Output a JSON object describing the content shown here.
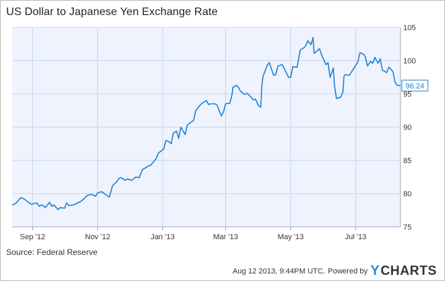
{
  "page": {
    "title": "US Dollar to Japanese Yen Exchange Rate",
    "source": "Source: Federal Reserve",
    "timestamp": "Aug 12 2013, 9:44PM UTC.",
    "powered_by": "Powered by",
    "brand_mark": "Y",
    "brand_rest": "CHARTS"
  },
  "colors": {
    "line": "#1f7fd0",
    "plot_bg": "#eef3fd",
    "grid": "#c6d6ef",
    "last_value_border": "#1f7fd0",
    "brand_accent": "#2a8dd4"
  },
  "chart_data": {
    "type": "line",
    "title": "US Dollar to Japanese Yen Exchange Rate",
    "x_tick_labels": [
      "Sep '12",
      "Nov '12",
      "Jan '13",
      "Mar '13",
      "May '13",
      "Jul '13"
    ],
    "y_ticks": [
      75,
      80,
      85,
      90,
      95,
      100,
      105
    ],
    "ylim": [
      75,
      105
    ],
    "x_start": "2012-08-13",
    "x_end": "2013-08-12",
    "grid": true,
    "last_value_label": "96.24",
    "series": [
      {
        "values": [
          [
            "2012-08-13",
            78.3
          ],
          [
            "2012-08-16",
            78.5
          ],
          [
            "2012-08-21",
            79.4
          ],
          [
            "2012-08-24",
            79.2
          ],
          [
            "2012-08-28",
            78.7
          ],
          [
            "2012-08-31",
            78.4
          ],
          [
            "2012-09-05",
            78.6
          ],
          [
            "2012-09-07",
            78.1
          ],
          [
            "2012-09-10",
            78.3
          ],
          [
            "2012-09-13",
            77.9
          ],
          [
            "2012-09-17",
            78.7
          ],
          [
            "2012-09-19",
            78.1
          ],
          [
            "2012-09-21",
            78.3
          ],
          [
            "2012-09-25",
            77.6
          ],
          [
            "2012-09-27",
            77.9
          ],
          [
            "2012-10-01",
            77.8
          ],
          [
            "2012-10-03",
            78.6
          ],
          [
            "2012-10-05",
            78.2
          ],
          [
            "2012-10-09",
            78.3
          ],
          [
            "2012-10-12",
            78.5
          ],
          [
            "2012-10-16",
            78.8
          ],
          [
            "2012-10-19",
            79.2
          ],
          [
            "2012-10-22",
            79.7
          ],
          [
            "2012-10-24",
            79.8
          ],
          [
            "2012-10-26",
            79.9
          ],
          [
            "2012-10-30",
            79.6
          ],
          [
            "2012-11-01",
            80.1
          ],
          [
            "2012-11-05",
            80.3
          ],
          [
            "2012-11-08",
            79.9
          ],
          [
            "2012-11-12",
            79.5
          ],
          [
            "2012-11-15",
            81.2
          ],
          [
            "2012-11-19",
            81.8
          ],
          [
            "2012-11-21",
            82.3
          ],
          [
            "2012-11-23",
            82.4
          ],
          [
            "2012-11-27",
            82.0
          ],
          [
            "2012-11-29",
            82.2
          ],
          [
            "2012-12-03",
            82.0
          ],
          [
            "2012-12-05",
            82.3
          ],
          [
            "2012-12-07",
            82.5
          ],
          [
            "2012-12-10",
            82.4
          ],
          [
            "2012-12-13",
            83.6
          ],
          [
            "2012-12-17",
            84.0
          ],
          [
            "2012-12-19",
            84.2
          ],
          [
            "2012-12-21",
            84.3
          ],
          [
            "2012-12-26",
            85.3
          ],
          [
            "2012-12-28",
            86.1
          ],
          [
            "2013-01-02",
            86.7
          ],
          [
            "2013-01-04",
            88.0
          ],
          [
            "2013-01-07",
            87.8
          ],
          [
            "2013-01-09",
            87.5
          ],
          [
            "2013-01-11",
            89.1
          ],
          [
            "2013-01-14",
            89.4
          ],
          [
            "2013-01-16",
            88.3
          ],
          [
            "2013-01-18",
            90.0
          ],
          [
            "2013-01-22",
            88.9
          ],
          [
            "2013-01-24",
            90.3
          ],
          [
            "2013-01-28",
            90.8
          ],
          [
            "2013-01-30",
            91.0
          ],
          [
            "2013-02-01",
            92.5
          ],
          [
            "2013-02-05",
            93.3
          ],
          [
            "2013-02-07",
            93.6
          ],
          [
            "2013-02-11",
            94.0
          ],
          [
            "2013-02-13",
            93.4
          ],
          [
            "2013-02-15",
            93.5
          ],
          [
            "2013-02-19",
            93.5
          ],
          [
            "2013-02-21",
            93.3
          ],
          [
            "2013-02-25",
            91.7
          ],
          [
            "2013-02-27",
            92.3
          ],
          [
            "2013-03-01",
            93.5
          ],
          [
            "2013-03-05",
            93.6
          ],
          [
            "2013-03-07",
            94.9
          ],
          [
            "2013-03-08",
            96.0
          ],
          [
            "2013-03-11",
            96.3
          ],
          [
            "2013-03-13",
            96.0
          ],
          [
            "2013-03-15",
            95.4
          ],
          [
            "2013-03-19",
            94.9
          ],
          [
            "2013-03-21",
            95.1
          ],
          [
            "2013-03-25",
            94.5
          ],
          [
            "2013-03-27",
            94.1
          ],
          [
            "2013-03-29",
            94.2
          ],
          [
            "2013-04-01",
            93.2
          ],
          [
            "2013-04-03",
            93.0
          ],
          [
            "2013-04-04",
            96.3
          ],
          [
            "2013-04-05",
            97.6
          ],
          [
            "2013-04-09",
            99.3
          ],
          [
            "2013-04-11",
            99.7
          ],
          [
            "2013-04-15",
            97.8
          ],
          [
            "2013-04-17",
            97.9
          ],
          [
            "2013-04-19",
            99.2
          ],
          [
            "2013-04-23",
            99.4
          ],
          [
            "2013-04-25",
            98.8
          ],
          [
            "2013-04-29",
            97.5
          ],
          [
            "2013-05-01",
            97.5
          ],
          [
            "2013-05-03",
            99.1
          ],
          [
            "2013-05-07",
            99.0
          ],
          [
            "2013-05-09",
            100.7
          ],
          [
            "2013-05-10",
            101.6
          ],
          [
            "2013-05-13",
            101.9
          ],
          [
            "2013-05-15",
            102.2
          ],
          [
            "2013-05-17",
            103.0
          ],
          [
            "2013-05-20",
            102.4
          ],
          [
            "2013-05-22",
            103.5
          ],
          [
            "2013-05-23",
            101.1
          ],
          [
            "2013-05-24",
            101.2
          ],
          [
            "2013-05-28",
            101.8
          ],
          [
            "2013-05-30",
            100.9
          ],
          [
            "2013-06-03",
            99.4
          ],
          [
            "2013-06-05",
            99.7
          ],
          [
            "2013-06-07",
            97.5
          ],
          [
            "2013-06-10",
            98.9
          ],
          [
            "2013-06-11",
            96.4
          ],
          [
            "2013-06-13",
            94.3
          ],
          [
            "2013-06-17",
            94.5
          ],
          [
            "2013-06-19",
            95.3
          ],
          [
            "2013-06-20",
            97.6
          ],
          [
            "2013-06-21",
            97.9
          ],
          [
            "2013-06-25",
            97.8
          ],
          [
            "2013-06-27",
            98.3
          ],
          [
            "2013-07-01",
            99.3
          ],
          [
            "2013-07-03",
            99.8
          ],
          [
            "2013-07-05",
            101.2
          ],
          [
            "2013-07-08",
            101.0
          ],
          [
            "2013-07-10",
            100.6
          ],
          [
            "2013-07-12",
            99.2
          ],
          [
            "2013-07-15",
            99.9
          ],
          [
            "2013-07-17",
            99.6
          ],
          [
            "2013-07-19",
            100.5
          ],
          [
            "2013-07-22",
            99.6
          ],
          [
            "2013-07-24",
            100.3
          ],
          [
            "2013-07-26",
            98.6
          ],
          [
            "2013-07-30",
            98.2
          ],
          [
            "2013-08-01",
            99.0
          ],
          [
            "2013-08-02",
            98.9
          ],
          [
            "2013-08-05",
            98.3
          ],
          [
            "2013-08-07",
            96.7
          ],
          [
            "2013-08-09",
            96.3
          ],
          [
            "2013-08-12",
            96.24
          ]
        ]
      }
    ]
  }
}
